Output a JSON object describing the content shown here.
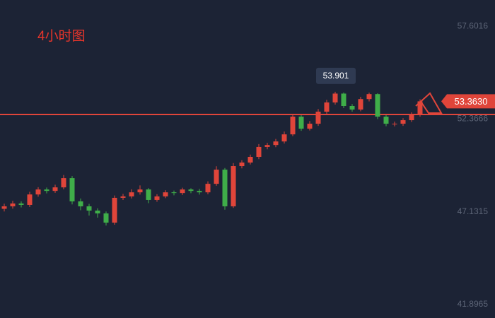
{
  "chart_data": {
    "type": "candlestick",
    "title": "4小时图",
    "categories": [
      null,
      null,
      null,
      null,
      null,
      null,
      null,
      null,
      null,
      null,
      null,
      null,
      null,
      null,
      null,
      null,
      null,
      null,
      null,
      null,
      null,
      null,
      null,
      null,
      null,
      null,
      null,
      null,
      null,
      null,
      null,
      null,
      null,
      null,
      null,
      null,
      null,
      null,
      null,
      null,
      null,
      null,
      null,
      null,
      null,
      null,
      null,
      null,
      null,
      null
    ],
    "open": [
      47.3,
      47.44,
      47.6,
      47.52,
      48.11,
      48.39,
      48.31,
      48.51,
      49.03,
      47.72,
      47.44,
      47.2,
      47.04,
      46.52,
      47.92,
      48.0,
      48.23,
      48.39,
      47.8,
      48.0,
      48.23,
      48.19,
      48.39,
      48.31,
      48.23,
      48.71,
      49.51,
      47.44,
      49.71,
      49.91,
      50.23,
      50.79,
      50.9,
      51.1,
      51.5,
      52.5,
      51.82,
      52.1,
      52.78,
      53.3,
      53.8,
      53.1,
      52.9,
      53.49,
      53.77,
      52.5,
      52.1,
      52.1,
      52.3,
      52.62
    ],
    "high": [
      47.59,
      47.75,
      47.72,
      48.26,
      48.52,
      48.5,
      48.66,
      49.21,
      49.15,
      47.88,
      47.58,
      47.33,
      47.15,
      48.05,
      48.14,
      48.4,
      48.62,
      48.47,
      48.12,
      48.35,
      48.33,
      48.49,
      48.46,
      48.42,
      48.85,
      49.7,
      49.6,
      49.88,
      50.04,
      50.36,
      50.95,
      51.02,
      51.24,
      51.66,
      52.64,
      52.58,
      52.25,
      52.93,
      53.45,
      53.901,
      53.86,
      53.21,
      53.62,
      53.85,
      53.82,
      52.58,
      52.22,
      52.41,
      52.74,
      53.48
    ],
    "low": [
      47.15,
      47.31,
      47.38,
      47.4,
      47.98,
      48.17,
      48.2,
      48.4,
      47.55,
      47.22,
      46.92,
      46.8,
      46.36,
      46.4,
      47.8,
      47.88,
      48.1,
      47.62,
      47.7,
      47.9,
      48.06,
      48.08,
      48.18,
      48.1,
      48.12,
      48.6,
      47.25,
      47.35,
      49.58,
      49.8,
      50.1,
      50.66,
      50.78,
      50.98,
      51.4,
      51.7,
      51.72,
      51.98,
      52.66,
      53.18,
      52.98,
      52.78,
      52.8,
      53.36,
      52.36,
      51.96,
      51.95,
      51.98,
      52.2,
      52.5
    ],
    "close": [
      47.44,
      47.6,
      47.52,
      48.11,
      48.39,
      48.31,
      48.51,
      49.03,
      47.72,
      47.44,
      47.2,
      47.04,
      46.52,
      47.92,
      48.0,
      48.23,
      48.39,
      47.8,
      48.0,
      48.23,
      48.19,
      48.39,
      48.31,
      48.23,
      48.71,
      49.51,
      47.44,
      49.71,
      49.91,
      50.23,
      50.79,
      50.9,
      51.1,
      51.5,
      52.5,
      51.82,
      52.1,
      52.78,
      53.3,
      53.8,
      53.1,
      52.9,
      53.49,
      53.77,
      52.5,
      52.1,
      52.1,
      52.3,
      52.62,
      53.363
    ],
    "up_color": "#e0453a",
    "down_color": "#3fae49",
    "ylim": [
      41.14,
      59.08
    ],
    "yticks": [
      57.6016,
      52.3666,
      47.1315,
      41.8965
    ],
    "peak": 53.901,
    "price_line": {
      "value": 53.363,
      "label": "53.3630"
    }
  }
}
